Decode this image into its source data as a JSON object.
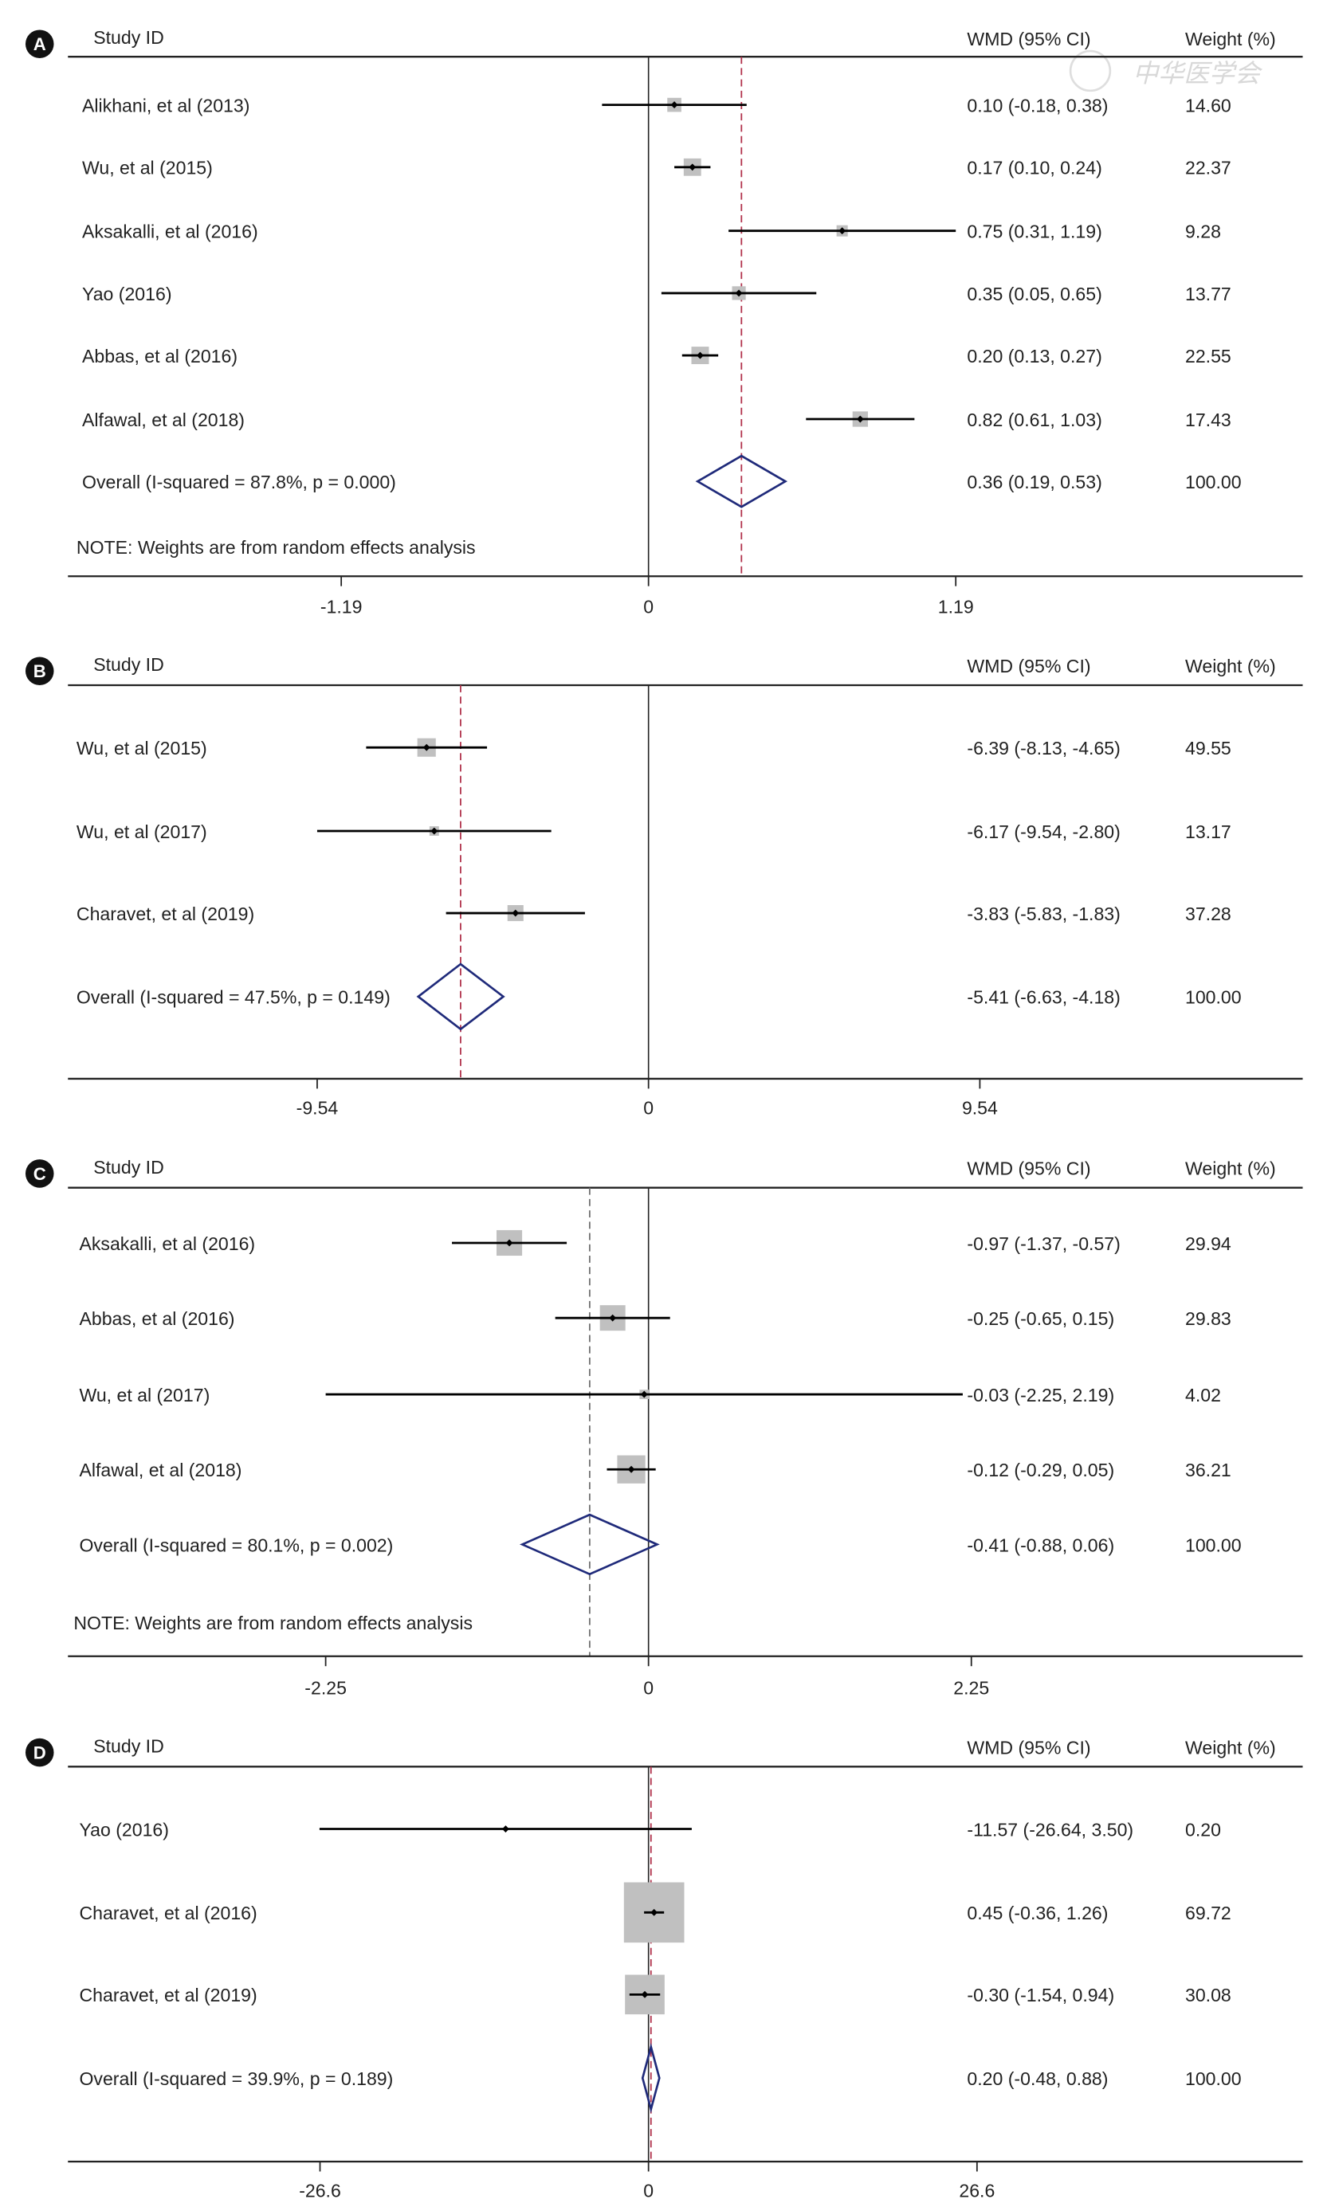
{
  "watermark": "中华医学会",
  "header": {
    "study": "Study  ID",
    "wmd": "WMD (95% CI)",
    "weight": "Weight (%)"
  },
  "colors": {
    "ci_line": "#000000",
    "box": "#c0c0c0",
    "diamond": "#1f2a7a",
    "overall_line_red": "#b0304a",
    "overall_line_gray": "#707070",
    "axis": "#222222"
  },
  "chart_data": [
    {
      "type": "forest",
      "panel": "A",
      "xticks": [
        -1.19,
        0,
        1.19
      ],
      "xtick_labels": [
        "-1.19",
        "0",
        "1.19"
      ],
      "studies": [
        {
          "id": "Alikhani, et al (2013)",
          "wmd": 0.1,
          "lo": -0.18,
          "hi": 0.38,
          "label": "0.10 (-0.18, 0.38)",
          "weight": "14.60"
        },
        {
          "id": "Wu, et al (2015)",
          "wmd": 0.17,
          "lo": 0.1,
          "hi": 0.24,
          "label": "0.17 (0.10, 0.24)",
          "weight": "22.37"
        },
        {
          "id": "Aksakalli, et al (2016)",
          "wmd": 0.75,
          "lo": 0.31,
          "hi": 1.19,
          "label": "0.75 (0.31, 1.19)",
          "weight": "9.28"
        },
        {
          "id": "Yao (2016)",
          "wmd": 0.35,
          "lo": 0.05,
          "hi": 0.65,
          "label": "0.35 (0.05, 0.65)",
          "weight": "13.77"
        },
        {
          "id": "Abbas, et al (2016)",
          "wmd": 0.2,
          "lo": 0.13,
          "hi": 0.27,
          "label": "0.20 (0.13, 0.27)",
          "weight": "22.55"
        },
        {
          "id": "Alfawal, et al (2018)",
          "wmd": 0.82,
          "lo": 0.61,
          "hi": 1.03,
          "label": "0.82 (0.61, 1.03)",
          "weight": "17.43"
        }
      ],
      "overall": {
        "id": "Overall  (I-squared = 87.8%, p = 0.000)",
        "wmd": 0.36,
        "lo": 0.19,
        "hi": 0.53,
        "label": "0.36 (0.19, 0.53)",
        "weight": "100.00"
      },
      "note": "NOTE: Weights are from random effects analysis"
    },
    {
      "type": "forest",
      "panel": "B",
      "xticks": [
        -9.54,
        0,
        9.54
      ],
      "xtick_labels": [
        "-9.54",
        "0",
        "9.54"
      ],
      "studies": [
        {
          "id": "Wu, et al (2015)",
          "wmd": -6.39,
          "lo": -8.13,
          "hi": -4.65,
          "label": "-6.39 (-8.13, -4.65)",
          "weight": "49.55"
        },
        {
          "id": "Wu, et al (2017)",
          "wmd": -6.17,
          "lo": -9.54,
          "hi": -2.8,
          "label": "-6.17 (-9.54, -2.80)",
          "weight": "13.17"
        },
        {
          "id": "Charavet, et al (2019)",
          "wmd": -3.83,
          "lo": -5.83,
          "hi": -1.83,
          "label": "-3.83 (-5.83, -1.83)",
          "weight": "37.28"
        }
      ],
      "overall": {
        "id": "Overall  (I-squared = 47.5%, p = 0.149)",
        "wmd": -5.41,
        "lo": -6.63,
        "hi": -4.18,
        "label": "-5.41 (-6.63, -4.18)",
        "weight": "100.00"
      },
      "note": ""
    },
    {
      "type": "forest",
      "panel": "C",
      "xticks": [
        -2.25,
        0,
        2.25
      ],
      "xtick_labels": [
        "-2.25",
        "0",
        "2.25"
      ],
      "studies": [
        {
          "id": "Aksakalli, et al (2016)",
          "wmd": -0.97,
          "lo": -1.37,
          "hi": -0.57,
          "label": "-0.97 (-1.37, -0.57)",
          "weight": "29.94"
        },
        {
          "id": "Abbas, et al (2016)",
          "wmd": -0.25,
          "lo": -0.65,
          "hi": 0.15,
          "label": "-0.25 (-0.65, 0.15)",
          "weight": "29.83"
        },
        {
          "id": "Wu, et al (2017)",
          "wmd": -0.03,
          "lo": -2.25,
          "hi": 2.19,
          "label": "-0.03 (-2.25, 2.19)",
          "weight": "4.02"
        },
        {
          "id": "Alfawal, et al (2018)",
          "wmd": -0.12,
          "lo": -0.29,
          "hi": 0.05,
          "label": "-0.12 (-0.29, 0.05)",
          "weight": "36.21"
        }
      ],
      "overall": {
        "id": "Overall  (I-squared = 80.1%, p = 0.002)",
        "wmd": -0.41,
        "lo": -0.88,
        "hi": 0.06,
        "label": "-0.41 (-0.88, 0.06)",
        "weight": "100.00"
      },
      "note": "NOTE: Weights are from random effects analysis"
    },
    {
      "type": "forest",
      "panel": "D",
      "xticks": [
        -26.6,
        0,
        26.6
      ],
      "xtick_labels": [
        "-26.6",
        "0",
        "26.6"
      ],
      "studies": [
        {
          "id": "Yao (2016)",
          "wmd": -11.57,
          "lo": -26.64,
          "hi": 3.5,
          "label": "-11.57 (-26.64, 3.50)",
          "weight": "0.20"
        },
        {
          "id": "Charavet, et al (2016)",
          "wmd": 0.45,
          "lo": -0.36,
          "hi": 1.26,
          "label": "0.45 (-0.36, 1.26)",
          "weight": "69.72"
        },
        {
          "id": "Charavet, et al (2019)",
          "wmd": -0.3,
          "lo": -1.54,
          "hi": 0.94,
          "label": "-0.30 (-1.54, 0.94)",
          "weight": "30.08"
        }
      ],
      "overall": {
        "id": "Overall  (I-squared = 39.9%, p = 0.189)",
        "wmd": 0.2,
        "lo": -0.48,
        "hi": 0.88,
        "label": "0.20 (-0.48, 0.88)",
        "weight": "100.00"
      },
      "note": ""
    }
  ]
}
